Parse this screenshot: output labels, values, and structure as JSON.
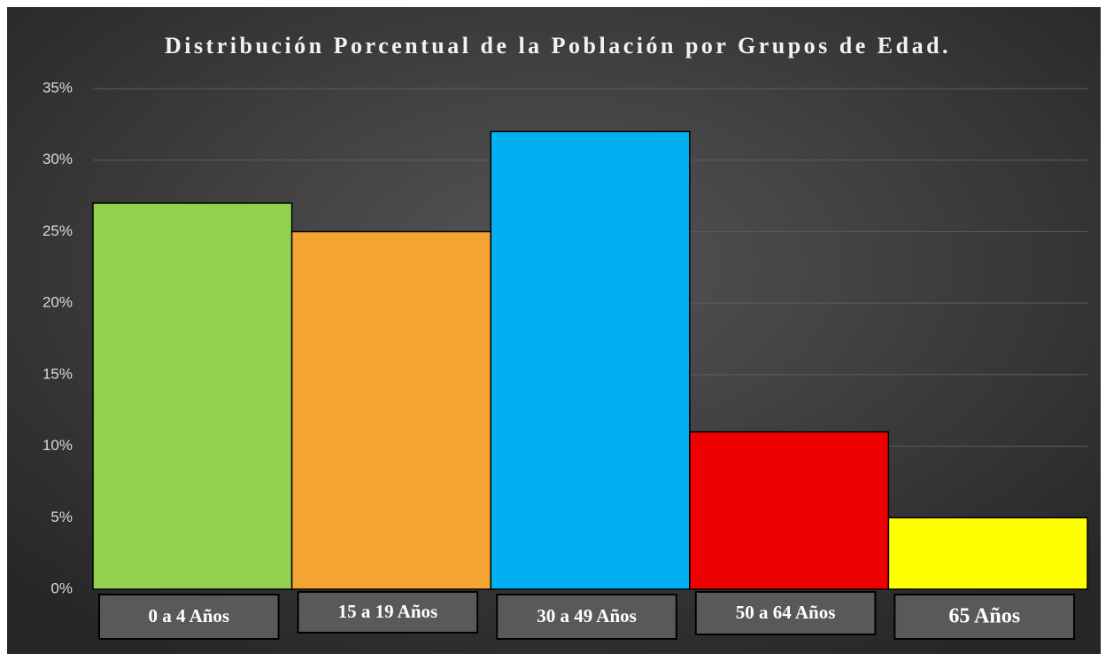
{
  "chart_data": {
    "type": "bar",
    "title": "Distribución Porcentual de la Población por Grupos de Edad.",
    "categories": [
      "0 a 4 Años",
      "15 a 19 Años",
      "30 a 49 Años",
      "50 a 64 Años",
      "65 Años"
    ],
    "values": [
      27,
      25,
      32,
      11,
      5
    ],
    "colors": [
      "#92d050",
      "#f4a431",
      "#00b0f0",
      "#ee0000",
      "#ffff00"
    ],
    "ylim": [
      0,
      35
    ],
    "yticks": [
      {
        "value": 0,
        "label": "0%"
      },
      {
        "value": 5,
        "label": "5%"
      },
      {
        "value": 10,
        "label": "10%"
      },
      {
        "value": 15,
        "label": "15%"
      },
      {
        "value": 20,
        "label": "20%"
      },
      {
        "value": 25,
        "label": "25%"
      },
      {
        "value": 30,
        "label": "30%"
      },
      {
        "value": 35,
        "label": "35%"
      }
    ],
    "grid": true
  }
}
